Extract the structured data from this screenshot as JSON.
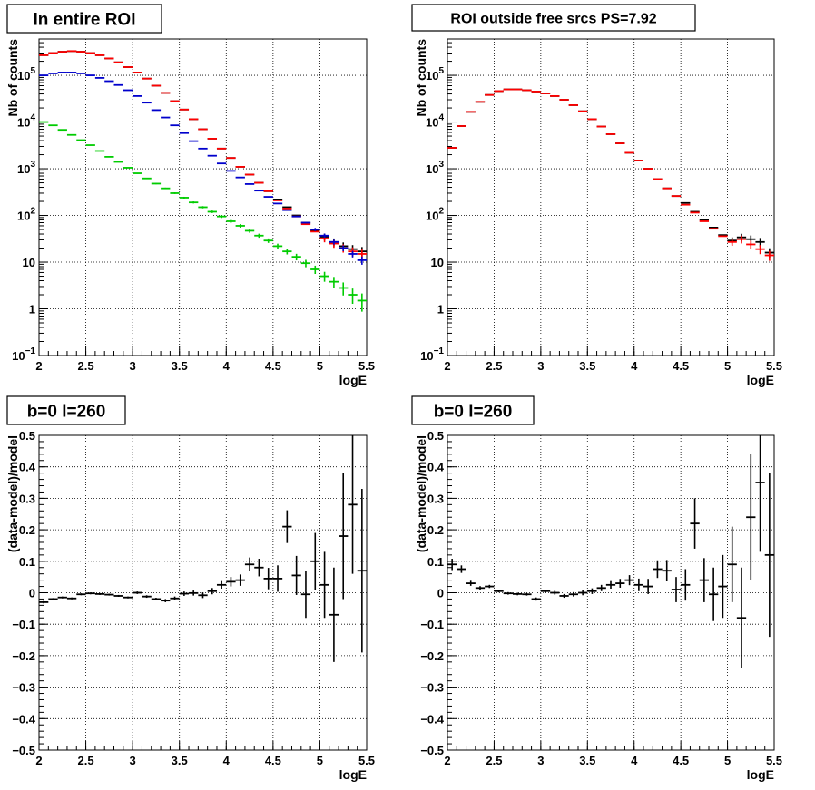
{
  "chart_data": [
    {
      "type": "scatter",
      "title": "In entire ROI",
      "xlabel": "logE",
      "ylabel": "Nb of counts",
      "xlim": [
        2,
        5.5
      ],
      "ylim": [
        0.1,
        600000
      ],
      "yscale": "log",
      "grid": true,
      "x_ticks": [
        "2",
        "2.5",
        "3",
        "3.5",
        "4",
        "4.5",
        "5",
        "5.5"
      ],
      "y_ticks": [
        {
          "base": "10",
          "exp": "−1",
          "value": 0.1
        },
        {
          "base": "1",
          "exp": "",
          "value": 1
        },
        {
          "base": "10",
          "exp": "",
          "value": 10
        },
        {
          "base": "10",
          "exp": "2",
          "value": 100
        },
        {
          "base": "10",
          "exp": "3",
          "value": 1000
        },
        {
          "base": "10",
          "exp": "4",
          "value": 10000
        },
        {
          "base": "10",
          "exp": "5",
          "value": 100000
        }
      ],
      "x": [
        2.05,
        2.15,
        2.25,
        2.35,
        2.45,
        2.55,
        2.65,
        2.75,
        2.85,
        2.95,
        3.05,
        3.15,
        3.25,
        3.35,
        3.45,
        3.55,
        3.65,
        3.75,
        3.85,
        3.95,
        4.05,
        4.15,
        4.25,
        4.35,
        4.45,
        4.55,
        4.65,
        4.75,
        4.85,
        4.95,
        5.05,
        5.15,
        5.25,
        5.35,
        5.45
      ],
      "series": [
        {
          "color": "#000000",
          "values": [
            270000,
            300000,
            320000,
            330000,
            320000,
            300000,
            270000,
            230000,
            190000,
            150000,
            115000,
            85000,
            60000,
            42000,
            28000,
            18500,
            11500,
            7000,
            4400,
            2700,
            1700,
            1100,
            750,
            500,
            330,
            220,
            150,
            100,
            70,
            47,
            35,
            27,
            22,
            19,
            17
          ],
          "errors": [
            0,
            0,
            0,
            0,
            0,
            0,
            0,
            0,
            0,
            0,
            0,
            0,
            0,
            0,
            0,
            0,
            0,
            0,
            0,
            0,
            0,
            0,
            0,
            0,
            0,
            0,
            0,
            0,
            0,
            0,
            0.17,
            0.19,
            0.2,
            0.22,
            0.24
          ]
        },
        {
          "color": "#ff0000",
          "values": [
            270000,
            300000,
            320000,
            330000,
            320000,
            300000,
            270000,
            230000,
            190000,
            150000,
            115000,
            85000,
            60000,
            42000,
            28000,
            18500,
            11500,
            7000,
            4400,
            2700,
            1700,
            1100,
            750,
            500,
            330,
            210,
            140,
            95,
            65,
            45,
            32,
            25,
            20,
            17,
            15
          ],
          "errors": [
            0,
            0,
            0,
            0,
            0,
            0,
            0,
            0,
            0,
            0,
            0,
            0,
            0,
            0,
            0,
            0,
            0,
            0,
            0,
            0,
            0,
            0,
            0,
            0,
            0,
            0,
            0,
            0,
            0,
            0,
            0.17,
            0.19,
            0.2,
            0.22,
            0.24
          ]
        },
        {
          "color": "#0000cc",
          "values": [
            100000,
            110000,
            115000,
            115000,
            110000,
            100000,
            88000,
            75000,
            62000,
            48000,
            36000,
            26000,
            18000,
            12500,
            8500,
            5800,
            3900,
            2700,
            1900,
            1300,
            900,
            650,
            470,
            340,
            250,
            180,
            130,
            95,
            70,
            50,
            37,
            27,
            20,
            15,
            11
          ],
          "errors": [
            0,
            0,
            0,
            0,
            0,
            0,
            0,
            0,
            0,
            0,
            0,
            0,
            0,
            0,
            0,
            0,
            0,
            0,
            0,
            0,
            0,
            0,
            0,
            0,
            0,
            0,
            0,
            0,
            0,
            0.08,
            0.1,
            0.12,
            0.14,
            0.16,
            0.2
          ]
        },
        {
          "color": "#00cc00",
          "values": [
            10000,
            8500,
            6800,
            5300,
            4100,
            3200,
            2400,
            1800,
            1400,
            1050,
            800,
            620,
            480,
            380,
            300,
            240,
            190,
            150,
            120,
            95,
            75,
            60,
            47,
            37,
            29,
            22,
            17,
            13,
            9.5,
            7,
            5,
            3.8,
            2.8,
            2,
            1.5
          ],
          "errors": [
            0.01,
            0.01,
            0.01,
            0.01,
            0.01,
            0.01,
            0.015,
            0.015,
            0.02,
            0.02,
            0.025,
            0.03,
            0.03,
            0.035,
            0.04,
            0.045,
            0.05,
            0.055,
            0.06,
            0.07,
            0.08,
            0.085,
            0.095,
            0.1,
            0.11,
            0.13,
            0.14,
            0.16,
            0.18,
            0.2,
            0.24,
            0.27,
            0.31,
            0.36,
            0.42
          ]
        }
      ]
    },
    {
      "type": "scatter",
      "title": "ROI outside free srcs PS=7.92",
      "xlabel": "logE",
      "ylabel": "Nb of counts",
      "xlim": [
        2,
        5.5
      ],
      "ylim": [
        0.1,
        600000
      ],
      "yscale": "log",
      "grid": true,
      "x_ticks": [
        "2",
        "2.5",
        "3",
        "3.5",
        "4",
        "4.5",
        "5",
        "5.5"
      ],
      "y_ticks": [
        {
          "base": "10",
          "exp": "−1",
          "value": 0.1
        },
        {
          "base": "1",
          "exp": "",
          "value": 1
        },
        {
          "base": "10",
          "exp": "",
          "value": 10
        },
        {
          "base": "10",
          "exp": "2",
          "value": 100
        },
        {
          "base": "10",
          "exp": "3",
          "value": 1000
        },
        {
          "base": "10",
          "exp": "4",
          "value": 10000
        },
        {
          "base": "10",
          "exp": "5",
          "value": 100000
        }
      ],
      "x": [
        2.05,
        2.15,
        2.25,
        2.35,
        2.45,
        2.55,
        2.65,
        2.75,
        2.85,
        2.95,
        3.05,
        3.15,
        3.25,
        3.35,
        3.45,
        3.55,
        3.65,
        3.75,
        3.85,
        3.95,
        4.05,
        4.15,
        4.25,
        4.35,
        4.45,
        4.55,
        4.65,
        4.75,
        4.85,
        4.95,
        5.05,
        5.15,
        5.25,
        5.35,
        5.45
      ],
      "series": [
        {
          "color": "#000000",
          "values": [
            2800,
            8200,
            16500,
            27000,
            38000,
            46000,
            50000,
            50000,
            48000,
            45000,
            41000,
            36000,
            30000,
            23000,
            17000,
            11500,
            8000,
            5500,
            3500,
            2200,
            1500,
            1000,
            600,
            380,
            260,
            185,
            120,
            80,
            55,
            38,
            29,
            34,
            31,
            27,
            16
          ],
          "errors": [
            0,
            0,
            0,
            0,
            0,
            0,
            0,
            0,
            0,
            0,
            0,
            0,
            0,
            0,
            0,
            0,
            0,
            0,
            0,
            0,
            0,
            0,
            0,
            0,
            0,
            0,
            0,
            0,
            0,
            0,
            0.17,
            0.19,
            0.2,
            0.22,
            0.24
          ]
        },
        {
          "color": "#ff0000",
          "values": [
            2800,
            8200,
            16500,
            27000,
            38000,
            46000,
            50000,
            50000,
            48000,
            45000,
            41000,
            36000,
            30000,
            23000,
            17000,
            11500,
            8000,
            5500,
            3500,
            2200,
            1500,
            1000,
            600,
            380,
            260,
            170,
            115,
            75,
            52,
            36,
            27,
            31,
            24,
            19,
            14
          ],
          "errors": [
            0,
            0,
            0,
            0,
            0,
            0,
            0,
            0,
            0,
            0,
            0,
            0,
            0,
            0,
            0,
            0,
            0,
            0,
            0,
            0,
            0,
            0,
            0,
            0,
            0,
            0,
            0,
            0,
            0,
            0,
            0.17,
            0.19,
            0.2,
            0.22,
            0.24
          ]
        }
      ]
    },
    {
      "type": "scatter",
      "title": "b=0 l=260",
      "xlabel": "logE",
      "ylabel": "(data-model)/model",
      "xlim": [
        2,
        5.5
      ],
      "ylim": [
        -0.5,
        0.5
      ],
      "grid": true,
      "x_ticks": [
        "2",
        "2.5",
        "3",
        "3.5",
        "4",
        "4.5",
        "5",
        "5.5"
      ],
      "y_ticks": [
        "−0.5",
        "−0.4",
        "−0.3",
        "−0.2",
        "−0.1",
        "0",
        "0.1",
        "0.2",
        "0.3",
        "0.4",
        "0.5"
      ],
      "x": [
        2.05,
        2.15,
        2.25,
        2.35,
        2.45,
        2.55,
        2.65,
        2.75,
        2.85,
        2.95,
        3.05,
        3.15,
        3.25,
        3.35,
        3.45,
        3.55,
        3.65,
        3.75,
        3.85,
        3.95,
        4.05,
        4.15,
        4.25,
        4.35,
        4.45,
        4.55,
        4.65,
        4.75,
        4.85,
        4.95,
        5.05,
        5.15,
        5.25,
        5.35,
        5.45
      ],
      "series": [
        {
          "color": "#000000",
          "values": [
            -0.03,
            -0.02,
            -0.015,
            -0.018,
            -0.005,
            -0.002,
            -0.004,
            -0.006,
            -0.01,
            -0.015,
            0.0,
            -0.012,
            -0.02,
            -0.025,
            -0.018,
            -0.003,
            -0.001,
            -0.008,
            0.005,
            0.025,
            0.035,
            0.04,
            0.09,
            0.08,
            0.045,
            0.045,
            0.21,
            0.055,
            -0.005,
            0.1,
            0.025,
            -0.07,
            0.18,
            0.28,
            0.07
          ],
          "errors": [
            0.004,
            0.003,
            0.003,
            0.003,
            0.003,
            0.003,
            0.003,
            0.003,
            0.003,
            0.003,
            0.004,
            0.004,
            0.004,
            0.005,
            0.006,
            0.007,
            0.008,
            0.009,
            0.01,
            0.012,
            0.015,
            0.018,
            0.022,
            0.028,
            0.034,
            0.042,
            0.052,
            0.062,
            0.075,
            0.09,
            0.105,
            0.15,
            0.2,
            0.22,
            0.26
          ]
        }
      ]
    },
    {
      "type": "scatter",
      "title": "b=0 l=260",
      "xlabel": "logE",
      "ylabel": "(data-model)/model",
      "xlim": [
        2,
        5.5
      ],
      "ylim": [
        -0.5,
        0.5
      ],
      "grid": true,
      "x_ticks": [
        "2",
        "2.5",
        "3",
        "3.5",
        "4",
        "4.5",
        "5",
        "5.5"
      ],
      "y_ticks": [
        "−0.5",
        "−0.4",
        "−0.3",
        "−0.2",
        "−0.1",
        "0",
        "0.1",
        "0.2",
        "0.3",
        "0.4",
        "0.5"
      ],
      "x": [
        2.05,
        2.15,
        2.25,
        2.35,
        2.45,
        2.55,
        2.65,
        2.75,
        2.85,
        2.95,
        3.05,
        3.15,
        3.25,
        3.35,
        3.45,
        3.55,
        3.65,
        3.75,
        3.85,
        3.95,
        4.05,
        4.15,
        4.25,
        4.35,
        4.45,
        4.55,
        4.65,
        4.75,
        4.85,
        4.95,
        5.05,
        5.15,
        5.25,
        5.35,
        5.45
      ],
      "series": [
        {
          "color": "#000000",
          "values": [
            0.09,
            0.075,
            0.03,
            0.015,
            0.02,
            0.005,
            -0.002,
            -0.004,
            -0.005,
            -0.02,
            0.005,
            0.0,
            -0.01,
            -0.005,
            0.0,
            0.005,
            0.015,
            0.025,
            0.03,
            0.04,
            0.025,
            0.02,
            0.075,
            0.07,
            0.01,
            0.025,
            0.22,
            0.04,
            -0.005,
            0.02,
            0.09,
            -0.08,
            0.24,
            0.35,
            0.12
          ],
          "errors": [
            0.018,
            0.012,
            0.008,
            0.006,
            0.005,
            0.004,
            0.004,
            0.004,
            0.004,
            0.005,
            0.005,
            0.006,
            0.006,
            0.007,
            0.008,
            0.009,
            0.01,
            0.012,
            0.014,
            0.016,
            0.02,
            0.024,
            0.028,
            0.034,
            0.04,
            0.05,
            0.08,
            0.07,
            0.085,
            0.1,
            0.12,
            0.16,
            0.2,
            0.22,
            0.26
          ]
        }
      ]
    }
  ]
}
